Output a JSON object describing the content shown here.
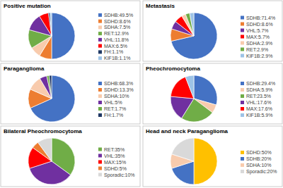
{
  "chart_data": [
    {
      "type": "pie",
      "title": "Positive mutation",
      "categories": [
        "SDHB:49.5%",
        "SDHD:8.6%",
        "SDHA:7.5%",
        "RET:12.9%",
        "VHL:11.8%",
        "MAX:6.5%",
        "FH:1.1%",
        "KIF1B:1.1%"
      ],
      "values": [
        49.5,
        8.6,
        7.5,
        12.9,
        11.8,
        6.5,
        1.1,
        1.1
      ],
      "colors": [
        "#4472c4",
        "#ed7d31",
        "#f8cbad",
        "#70ad47",
        "#7030a0",
        "#ff0000",
        "#1f3864",
        "#9dc3e6"
      ]
    },
    {
      "type": "pie",
      "title": "Metastasis",
      "categories": [
        "SDHB:71.4%",
        "SDHD:8.6%",
        "VHL:5.7%",
        "MAX:5.7%",
        "SDHA:2.9%",
        "RET:2.9%",
        "KIF1B:2.9%"
      ],
      "values": [
        71.4,
        8.6,
        5.7,
        5.7,
        2.9,
        2.9,
        2.9
      ],
      "colors": [
        "#4472c4",
        "#ed7d31",
        "#7030a0",
        "#ff0000",
        "#f8cbad",
        "#70ad47",
        "#9dc3e6"
      ]
    },
    {
      "type": "pie",
      "title": "Paraganglioma",
      "categories": [
        "SDHB:68.3%",
        "SDHD:13.3%",
        "SDHA:10%",
        "VHL:5%",
        "RET:1.7%",
        "FH:1.7%"
      ],
      "values": [
        68.3,
        13.3,
        10,
        5,
        1.7,
        1.7
      ],
      "colors": [
        "#4472c4",
        "#ed7d31",
        "#f8cbad",
        "#7030a0",
        "#70ad47",
        "#1f3864"
      ]
    },
    {
      "type": "pie",
      "title": "Pheochromocytoma",
      "categories": [
        "SDHB:29.4%",
        "SDHA:5.9%",
        "RET:23.5%",
        "VHL:17.6%",
        "MAX:17.6%",
        "KIF1B:5.9%"
      ],
      "values": [
        29.4,
        5.9,
        23.5,
        17.6,
        17.6,
        5.9
      ],
      "colors": [
        "#4472c4",
        "#f8cbad",
        "#70ad47",
        "#7030a0",
        "#ff0000",
        "#9dc3e6"
      ]
    },
    {
      "type": "pie",
      "title": "Bilateral Pheochromocytoma",
      "categories": [
        "RET:35%",
        "VHL:35%",
        "MAX:15%",
        "SDHD:5%",
        "Sporadic:10%"
      ],
      "values": [
        35,
        35,
        15,
        5,
        10
      ],
      "colors": [
        "#70ad47",
        "#7030a0",
        "#ff0000",
        "#ed7d31",
        "#d9d9d9"
      ]
    },
    {
      "type": "pie",
      "title": "Head and neck Paraganglioma",
      "categories": [
        "SDHD:50%",
        "SDHB:20%",
        "SDHA:10%",
        "Sporadic:20%"
      ],
      "values": [
        50,
        20,
        10,
        20
      ],
      "colors": [
        "#ffc000",
        "#4472c4",
        "#f8cbad",
        "#d9d9d9"
      ]
    }
  ]
}
